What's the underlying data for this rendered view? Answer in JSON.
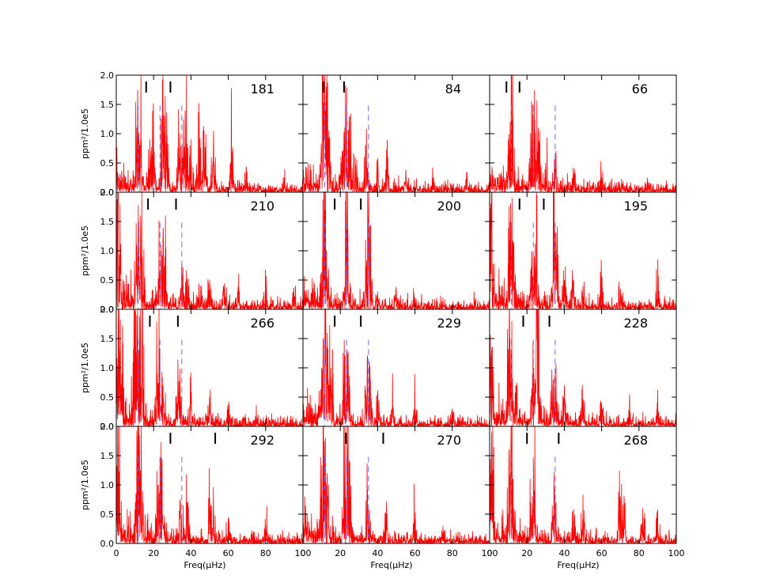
{
  "figure": {
    "xlabel": "Freq(μHz)",
    "ylabel": "ppm²/1.0e5",
    "colors": {
      "spectrum": "#ff0000",
      "mode_line": "#6a6aff",
      "marker": "#000000",
      "axes": "#000000"
    }
  },
  "chart_data": {
    "type": "line",
    "grid": false,
    "layout": {
      "rows": 4,
      "cols": 3
    },
    "xlim": [
      0,
      100
    ],
    "ylim": [
      0,
      2.0
    ],
    "xticks": [
      0,
      20,
      40,
      60,
      80,
      100
    ],
    "yticks": [
      0.0,
      0.5,
      1.0,
      1.5,
      2.0
    ],
    "xtick_labels": [
      "0",
      "20",
      "40",
      "60",
      "80",
      "100"
    ],
    "ytick_labels": [
      "0.0",
      "0.5",
      "1.0",
      "1.5",
      "2.0"
    ],
    "xlabel": "Freq(μHz)",
    "ylabel": "ppm²/1.0e5",
    "dashed_mode_lines_x": [
      11.7,
      23.4,
      35.1
    ],
    "panels": [
      {
        "label": "181",
        "markers_x": [
          16,
          29
        ],
        "peaks": [
          [
            11.5,
            1.2
          ],
          [
            12.5,
            0.8
          ],
          [
            13,
            0.9
          ],
          [
            18,
            0.9
          ],
          [
            20,
            0.8
          ],
          [
            25,
            1.2
          ],
          [
            26,
            1.3
          ],
          [
            27,
            0.85
          ],
          [
            34,
            1.0
          ],
          [
            37,
            1.1
          ],
          [
            40,
            0.9
          ],
          [
            44,
            1.1
          ],
          [
            47,
            1.05
          ],
          [
            52,
            0.75
          ],
          [
            62,
            0.7
          ],
          [
            70,
            0.35
          ],
          [
            90,
            0.25
          ]
        ]
      },
      {
        "label": "84",
        "markers_x": [
          11,
          22
        ],
        "peaks": [
          [
            10.5,
            1.5
          ],
          [
            11.5,
            2.0
          ],
          [
            12.5,
            1.8
          ],
          [
            14,
            0.8
          ],
          [
            21,
            0.7
          ],
          [
            22.5,
            1.1
          ],
          [
            23.5,
            1.05
          ],
          [
            25,
            1.0
          ],
          [
            28,
            0.6
          ],
          [
            34,
            0.7
          ],
          [
            40,
            0.4
          ],
          [
            45,
            0.35
          ],
          [
            55,
            0.3
          ],
          [
            70,
            0.25
          ],
          [
            88,
            0.2
          ]
        ]
      },
      {
        "label": "66",
        "markers_x": [
          9,
          16
        ],
        "peaks": [
          [
            10,
            0.9
          ],
          [
            11,
            1.2
          ],
          [
            12,
            1.25
          ],
          [
            22,
            1.0
          ],
          [
            23,
            1.5
          ],
          [
            24,
            1.55
          ],
          [
            26,
            1.0
          ],
          [
            30,
            0.5
          ],
          [
            35,
            0.4
          ],
          [
            45,
            0.3
          ],
          [
            60,
            0.25
          ],
          [
            85,
            0.15
          ]
        ]
      },
      {
        "label": "210",
        "markers_x": [
          17,
          32
        ],
        "peaks": [
          [
            1,
            2.0
          ],
          [
            11,
            1.1
          ],
          [
            12,
            1.5
          ],
          [
            13,
            1.6
          ],
          [
            14,
            0.9
          ],
          [
            23,
            0.6
          ],
          [
            24,
            1.1
          ],
          [
            25,
            1.2
          ],
          [
            26,
            0.9
          ],
          [
            35,
            0.6
          ],
          [
            38,
            0.5
          ],
          [
            45,
            0.4
          ],
          [
            50,
            0.5
          ],
          [
            58,
            0.45
          ],
          [
            65,
            0.3
          ],
          [
            80,
            0.25
          ],
          [
            95,
            0.3
          ]
        ]
      },
      {
        "label": "200",
        "markers_x": [
          17,
          31
        ],
        "peaks": [
          [
            10.5,
            0.9
          ],
          [
            11.5,
            2.0
          ],
          [
            12.5,
            1.0
          ],
          [
            23.2,
            2.0
          ],
          [
            24,
            1.4
          ],
          [
            34.8,
            1.45
          ],
          [
            35.5,
            1.1
          ],
          [
            40,
            0.3
          ],
          [
            50,
            0.3
          ],
          [
            60,
            0.2
          ],
          [
            75,
            0.2
          ],
          [
            92,
            0.15
          ]
        ]
      },
      {
        "label": "195",
        "markers_x": [
          16,
          29
        ],
        "peaks": [
          [
            1,
            2.0
          ],
          [
            11,
            1.5
          ],
          [
            12,
            1.9
          ],
          [
            13,
            0.8
          ],
          [
            22.5,
            0.8
          ],
          [
            24,
            0.9
          ],
          [
            25,
            0.8
          ],
          [
            34.5,
            2.0
          ],
          [
            35.5,
            1.3
          ],
          [
            40,
            0.5
          ],
          [
            45,
            0.5
          ],
          [
            50,
            0.4
          ],
          [
            60,
            0.4
          ],
          [
            70,
            0.35
          ],
          [
            90,
            0.4
          ]
        ]
      },
      {
        "label": "266",
        "markers_x": [
          18,
          33
        ],
        "peaks": [
          [
            1,
            2.0
          ],
          [
            2,
            1.3
          ],
          [
            3,
            0.9
          ],
          [
            9,
            1.1
          ],
          [
            10,
            2.0
          ],
          [
            11,
            1.9
          ],
          [
            12,
            1.3
          ],
          [
            13,
            2.0
          ],
          [
            14,
            1.2
          ],
          [
            22,
            0.9
          ],
          [
            23,
            1.0
          ],
          [
            25,
            0.7
          ],
          [
            33,
            0.8
          ],
          [
            34,
            0.5
          ],
          [
            40,
            0.5
          ],
          [
            50,
            0.5
          ],
          [
            60,
            0.3
          ],
          [
            75,
            0.25
          ]
        ]
      },
      {
        "label": "229",
        "markers_x": [
          17,
          31
        ],
        "peaks": [
          [
            10,
            1.0
          ],
          [
            11,
            1.3
          ],
          [
            12,
            2.0
          ],
          [
            13,
            1.6
          ],
          [
            15,
            1.0
          ],
          [
            22.5,
            1.2
          ],
          [
            23.5,
            1.3
          ],
          [
            25,
            0.7
          ],
          [
            34.5,
            1.2
          ],
          [
            35.5,
            1.1
          ],
          [
            40,
            0.5
          ],
          [
            48,
            0.4
          ],
          [
            60,
            0.35
          ],
          [
            80,
            0.3
          ]
        ]
      },
      {
        "label": "228",
        "markers_x": [
          18,
          32
        ],
        "peaks": [
          [
            1,
            1.3
          ],
          [
            10.5,
            1.6
          ],
          [
            11.5,
            1.3
          ],
          [
            14,
            0.7
          ],
          [
            23,
            0.9
          ],
          [
            25,
            2.0
          ],
          [
            26,
            1.3
          ],
          [
            34,
            0.8
          ],
          [
            35.5,
            0.8
          ],
          [
            40,
            0.7
          ],
          [
            50,
            0.45
          ],
          [
            60,
            0.4
          ],
          [
            75,
            0.3
          ],
          [
            90,
            0.3
          ]
        ]
      },
      {
        "label": "292",
        "markers_x": [
          29,
          53
        ],
        "peaks": [
          [
            1,
            2.0
          ],
          [
            11,
            1.3
          ],
          [
            12,
            2.0
          ],
          [
            13,
            1.1
          ],
          [
            22.5,
            1.0
          ],
          [
            23.5,
            1.45
          ],
          [
            24.5,
            1.4
          ],
          [
            34,
            0.5
          ],
          [
            35,
            0.5
          ],
          [
            38,
            0.7
          ],
          [
            50,
            0.6
          ],
          [
            52,
            0.6
          ],
          [
            60,
            0.4
          ],
          [
            80,
            0.3
          ]
        ]
      },
      {
        "label": "270",
        "markers_x": [
          23,
          43
        ],
        "peaks": [
          [
            1,
            0.8
          ],
          [
            10,
            1.0
          ],
          [
            11,
            2.0
          ],
          [
            12,
            1.8
          ],
          [
            13,
            1.2
          ],
          [
            22.5,
            1.9
          ],
          [
            23.5,
            1.4
          ],
          [
            25,
            0.8
          ],
          [
            34.5,
            0.7
          ],
          [
            35,
            0.6
          ],
          [
            45,
            0.5
          ],
          [
            60,
            0.4
          ],
          [
            75,
            0.3
          ]
        ]
      },
      {
        "label": "268",
        "markers_x": [
          20,
          37
        ],
        "peaks": [
          [
            1,
            1.9
          ],
          [
            10.5,
            1.6
          ],
          [
            11.5,
            2.0
          ],
          [
            12.5,
            1.1
          ],
          [
            22,
            0.7
          ],
          [
            24,
            0.9
          ],
          [
            34.5,
            0.9
          ],
          [
            35.5,
            0.7
          ],
          [
            45,
            0.4
          ],
          [
            50,
            0.4
          ],
          [
            70,
            0.8
          ],
          [
            72,
            0.6
          ],
          [
            82,
            0.6
          ],
          [
            90,
            0.4
          ]
        ]
      }
    ]
  }
}
